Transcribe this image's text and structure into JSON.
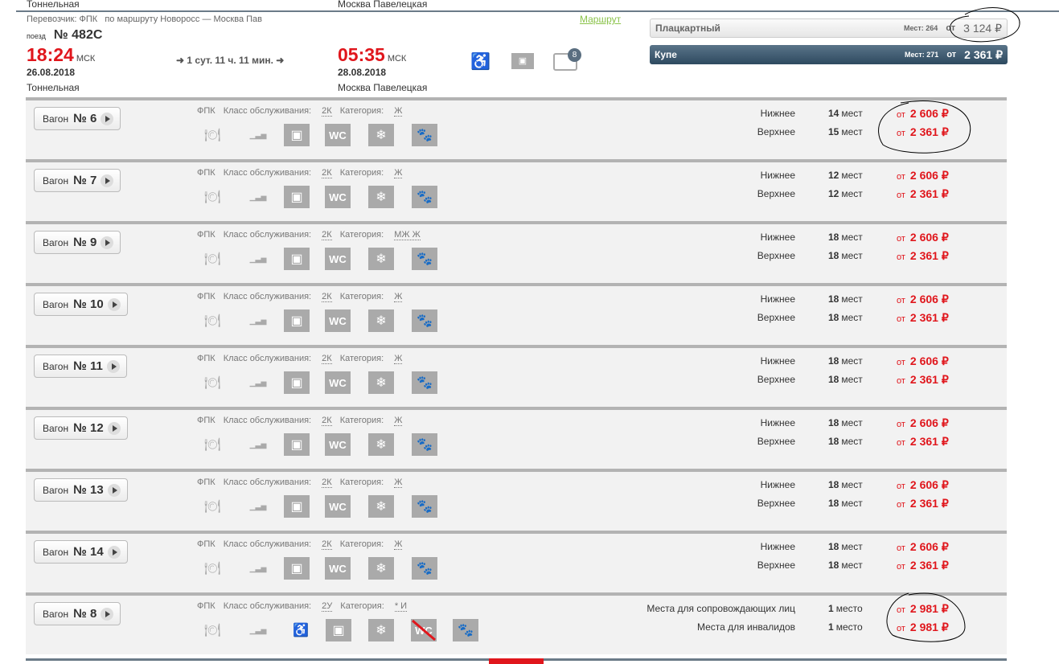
{
  "prev": {
    "from_station": "Тоннельная",
    "to_station": "Москва Павелецкая"
  },
  "train": {
    "carrier": "Перевозчик: ФПК",
    "route": "по маршруту Новоросс — Москва Пав",
    "route_link": "Маршрут",
    "train_label": "поезд",
    "number": "№ 482С",
    "dep_time": "18:24",
    "dep_tz": "МСК",
    "dep_date": "26.08.2018",
    "dep_station": "Тоннельная",
    "duration": "1 сут. 11 ч. 11 мин.",
    "arr_time": "05:35",
    "arr_tz": "МСК",
    "arr_date": "28.08.2018",
    "arr_station": "Москва Павелецкая",
    "icons": [
      "wheelchair-icon",
      "bag-icon",
      "luggage-icon"
    ],
    "luggage_badge": "8"
  },
  "classes": [
    {
      "name": "Плацкартный",
      "seats": "Мест: 264",
      "from": "от",
      "price": "3 124 ₽",
      "selected": false
    },
    {
      "name": "Купе",
      "seats": "Мест: 271",
      "from": "от",
      "price": "2 361 ₽",
      "selected": true
    }
  ],
  "labels": {
    "wagon": "Вагон",
    "carrier": "ФПК",
    "service_class": "Класс обслуживания:",
    "category": "Категория:",
    "from": "от"
  },
  "colors": {
    "accent_red": "#e0161c",
    "selected_class": "#2e4a60",
    "link": "#8bc34a"
  },
  "wagons": [
    {
      "number": "№ 6",
      "class": "2К",
      "category": "Ж",
      "icons": [
        "food-icon",
        "chart-icon",
        "bag-icon",
        "wc-icon",
        "snowflake-icon",
        "pet-icon"
      ],
      "seats": [
        {
          "type": "Нижнее",
          "count": "14",
          "unit": "мест",
          "price": "2 606 ₽"
        },
        {
          "type": "Верхнее",
          "count": "15",
          "unit": "мест",
          "price": "2 361 ₽"
        }
      ]
    },
    {
      "number": "№ 7",
      "class": "2К",
      "category": "Ж",
      "icons": [
        "food-icon",
        "chart-icon",
        "bag-icon",
        "wc-icon",
        "snowflake-icon",
        "pet-icon"
      ],
      "seats": [
        {
          "type": "Нижнее",
          "count": "12",
          "unit": "мест",
          "price": "2 606 ₽"
        },
        {
          "type": "Верхнее",
          "count": "12",
          "unit": "мест",
          "price": "2 361 ₽"
        }
      ]
    },
    {
      "number": "№ 9",
      "class": "2К",
      "category": "МЖ Ж",
      "icons": [
        "food-icon",
        "chart-icon",
        "bag-icon",
        "wc-icon",
        "snowflake-icon",
        "pet-icon"
      ],
      "seats": [
        {
          "type": "Нижнее",
          "count": "18",
          "unit": "мест",
          "price": "2 606 ₽"
        },
        {
          "type": "Верхнее",
          "count": "18",
          "unit": "мест",
          "price": "2 361 ₽"
        }
      ]
    },
    {
      "number": "№ 10",
      "class": "2К",
      "category": "Ж",
      "icons": [
        "food-icon",
        "chart-icon",
        "bag-icon",
        "wc-icon",
        "snowflake-icon",
        "pet-icon"
      ],
      "seats": [
        {
          "type": "Нижнее",
          "count": "18",
          "unit": "мест",
          "price": "2 606 ₽"
        },
        {
          "type": "Верхнее",
          "count": "18",
          "unit": "мест",
          "price": "2 361 ₽"
        }
      ]
    },
    {
      "number": "№ 11",
      "class": "2К",
      "category": "Ж",
      "icons": [
        "food-icon",
        "chart-icon",
        "bag-icon",
        "wc-icon",
        "snowflake-icon",
        "pet-icon"
      ],
      "seats": [
        {
          "type": "Нижнее",
          "count": "18",
          "unit": "мест",
          "price": "2 606 ₽"
        },
        {
          "type": "Верхнее",
          "count": "18",
          "unit": "мест",
          "price": "2 361 ₽"
        }
      ]
    },
    {
      "number": "№ 12",
      "class": "2К",
      "category": "Ж",
      "icons": [
        "food-icon",
        "chart-icon",
        "bag-icon",
        "wc-icon",
        "snowflake-icon",
        "pet-icon"
      ],
      "seats": [
        {
          "type": "Нижнее",
          "count": "18",
          "unit": "мест",
          "price": "2 606 ₽"
        },
        {
          "type": "Верхнее",
          "count": "18",
          "unit": "мест",
          "price": "2 361 ₽"
        }
      ]
    },
    {
      "number": "№ 13",
      "class": "2К",
      "category": "Ж",
      "icons": [
        "food-icon",
        "chart-icon",
        "bag-icon",
        "wc-icon",
        "snowflake-icon",
        "pet-icon"
      ],
      "seats": [
        {
          "type": "Нижнее",
          "count": "18",
          "unit": "мест",
          "price": "2 606 ₽"
        },
        {
          "type": "Верхнее",
          "count": "18",
          "unit": "мест",
          "price": "2 361 ₽"
        }
      ]
    },
    {
      "number": "№ 14",
      "class": "2К",
      "category": "Ж",
      "icons": [
        "food-icon",
        "chart-icon",
        "bag-icon",
        "wc-icon",
        "snowflake-icon",
        "pet-icon"
      ],
      "seats": [
        {
          "type": "Нижнее",
          "count": "18",
          "unit": "мест",
          "price": "2 606 ₽"
        },
        {
          "type": "Верхнее",
          "count": "18",
          "unit": "мест",
          "price": "2 361 ₽"
        }
      ]
    },
    {
      "number": "№ 8",
      "class": "2У",
      "category": "* И",
      "icons": [
        "food-icon",
        "chart-icon",
        "wheelchair-icon",
        "bag-icon",
        "snowflake-icon",
        "no-wc-icon",
        "pet-icon"
      ],
      "seats": [
        {
          "type": "Места для сопровождающих лиц",
          "count": "1",
          "unit": "место",
          "price": "2 981 ₽"
        },
        {
          "type": "Места для инвалидов",
          "count": "1",
          "unit": "место",
          "price": "2 981 ₽"
        }
      ]
    }
  ]
}
